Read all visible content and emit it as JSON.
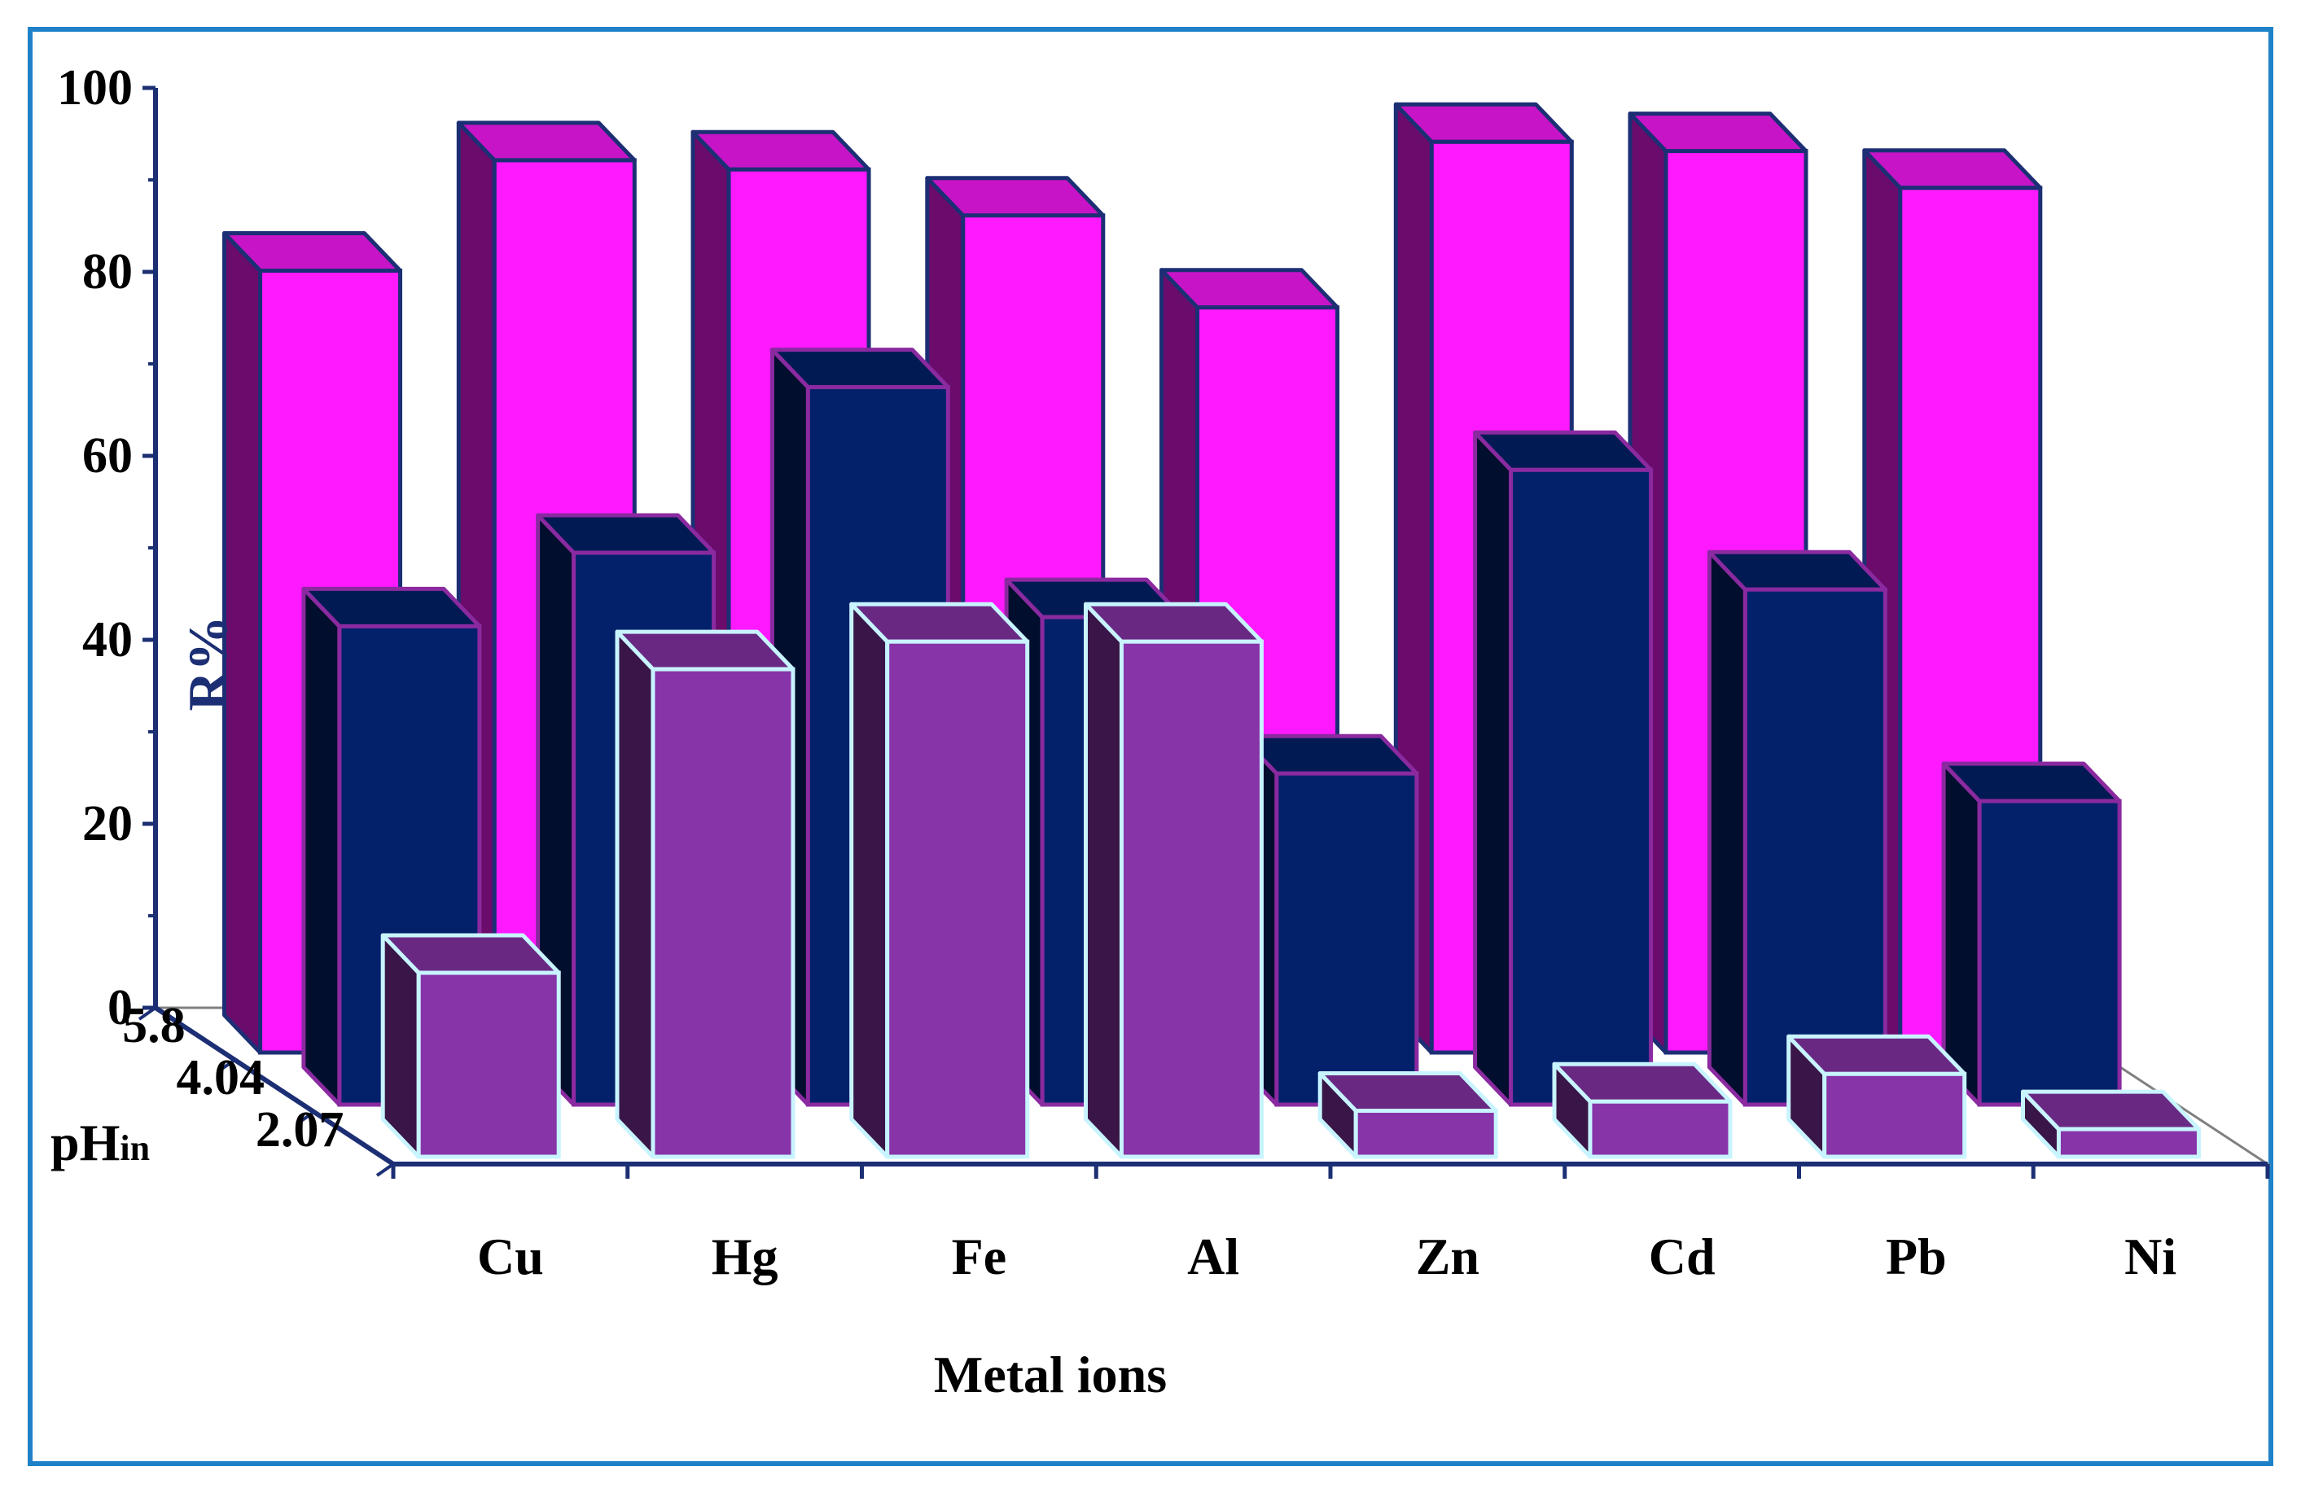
{
  "chart_data": {
    "type": "bar-3d",
    "title": "",
    "xlabel": "Metal ions",
    "ylabel": "R%",
    "zlabel": "pH",
    "zlabel_sub": "in",
    "ylim": [
      0,
      100
    ],
    "yticks": [
      0,
      20,
      40,
      60,
      80,
      100
    ],
    "categories": [
      "Cu",
      "Hg",
      "Fe",
      "Al",
      "Zn",
      "Cd",
      "Pb",
      "Ni"
    ],
    "series": [
      {
        "name": "5.8",
        "color": "#ff19ff",
        "values": [
          85,
          97,
          96,
          91,
          81,
          99,
          98,
          94
        ]
      },
      {
        "name": "4.04",
        "color": "#03216b",
        "values": [
          52,
          60,
          78,
          53,
          36,
          69,
          56,
          33
        ]
      },
      {
        "name": "2.07",
        "color": "#8734a8",
        "values": [
          20,
          53,
          56,
          56,
          5,
          6,
          9,
          3
        ]
      }
    ]
  }
}
